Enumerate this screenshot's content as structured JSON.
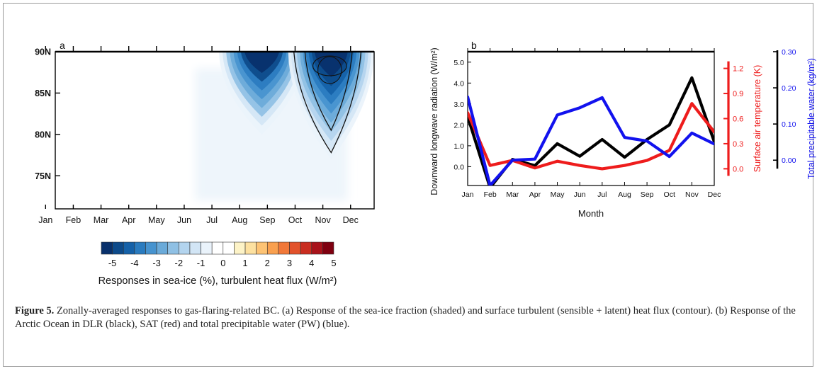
{
  "caption": {
    "label": "Figure 5.",
    "text": " Zonally-averaged responses to gas-flaring-related BC. (a) Response of the sea-ice fraction (shaded) and surface turbulent (sensible + latent) heat flux (contour). (b) Response of the Arctic Ocean in DLR (black), SAT (red) and total precipitable water (PW) (blue)."
  },
  "chart_data": [
    {
      "type": "heatmap",
      "panel_label": "a",
      "x_tick_labels": [
        "Jan",
        "Feb",
        "Mar",
        "Apr",
        "May",
        "Jun",
        "Jul",
        "Aug",
        "Sep",
        "Oct",
        "Nov",
        "Dec"
      ],
      "y_tick_labels": [
        "75N",
        "80N",
        "85N",
        "90N"
      ],
      "y_tick_values": [
        75,
        80,
        85,
        90
      ],
      "ylim": [
        71,
        90
      ],
      "colorbar": {
        "label": "Responses in sea-ice (%), turbulent heat flux (W/m²)",
        "tick_labels": [
          "-5",
          "-4",
          "-3",
          "-2",
          "-1",
          "0",
          "1",
          "2",
          "3",
          "4",
          "5"
        ],
        "colors": [
          "#08306b",
          "#0d4a8a",
          "#1561a8",
          "#2a7bbf",
          "#4693cf",
          "#6aaad9",
          "#8fc0e4",
          "#b3d4ee",
          "#d2e5f5",
          "#eaf3fb",
          "#ffffff",
          "#ffffff",
          "#fdf3c7",
          "#fde1a0",
          "#fdc374",
          "#f9a04f",
          "#f17839",
          "#e2522b",
          "#c92d20",
          "#a8121a",
          "#7f0010"
        ]
      },
      "shading_regions": [
        {
          "month_center": 7.8,
          "lat_low": 80.0,
          "lat_high": 90,
          "min_value": -4
        },
        {
          "month_center": 10.3,
          "lat_low": 77.0,
          "lat_high": 90,
          "min_value": -5
        }
      ],
      "contours": [
        {
          "month_center": 10.3,
          "lat_low": 77.8,
          "lat_high": 90
        },
        {
          "month_center": 10.3,
          "lat_low": 80.5,
          "lat_high": 90
        }
      ]
    },
    {
      "type": "line",
      "panel_label": "b",
      "categories": [
        "Jan",
        "Feb",
        "Mar",
        "Apr",
        "May",
        "Jun",
        "Jul",
        "Aug",
        "Sep",
        "Oct",
        "Nov",
        "Dec"
      ],
      "xlabel": "Month",
      "series": [
        {
          "name": "DLR",
          "color": "#000000",
          "axis": "left",
          "values": [
            2.4,
            -1.0,
            0.35,
            0.05,
            1.1,
            0.5,
            1.3,
            0.45,
            1.3,
            2.0,
            4.25,
            1.2
          ]
        },
        {
          "name": "SAT",
          "color": "#ee1c1c",
          "axis": "right1",
          "values": [
            0.67,
            0.04,
            0.1,
            0.01,
            0.09,
            0.04,
            0.0,
            0.04,
            0.1,
            0.22,
            0.78,
            0.44
          ]
        },
        {
          "name": "PW",
          "color": "#1212ee",
          "axis": "right2",
          "values": [
            0.175,
            -0.07,
            0.0,
            0.003,
            0.125,
            0.145,
            0.173,
            0.063,
            0.053,
            0.01,
            0.075,
            0.045
          ]
        }
      ],
      "axes": {
        "left": {
          "label": "Downward longwave radiation (W/m²)",
          "color": "#111111",
          "ylim": [
            -0.9,
            5.5
          ],
          "ticks": [
            0.0,
            1.0,
            2.0,
            3.0,
            4.0,
            5.0
          ],
          "tick_labels": [
            "0.0",
            "1.0",
            "2.0",
            "3.0",
            "4.0",
            "5.0"
          ]
        },
        "right1": {
          "label": "Surface air temperature (K)",
          "color": "#ee1c1c",
          "ylim": [
            -0.2,
            1.4
          ],
          "ticks": [
            0.0,
            0.3,
            0.6,
            0.9,
            1.2
          ],
          "tick_labels": [
            "0.0",
            "0.3",
            "0.6",
            "0.9",
            "1.2"
          ]
        },
        "right2": {
          "label": "Total precipitable water (kg/m²)",
          "color": "#1212ee",
          "ylim": [
            -0.07,
            0.3
          ],
          "ticks": [
            0.0,
            0.1,
            0.2,
            0.3
          ],
          "tick_labels": [
            "0.00",
            "0.10",
            "0.20",
            "0.30"
          ]
        }
      }
    }
  ]
}
